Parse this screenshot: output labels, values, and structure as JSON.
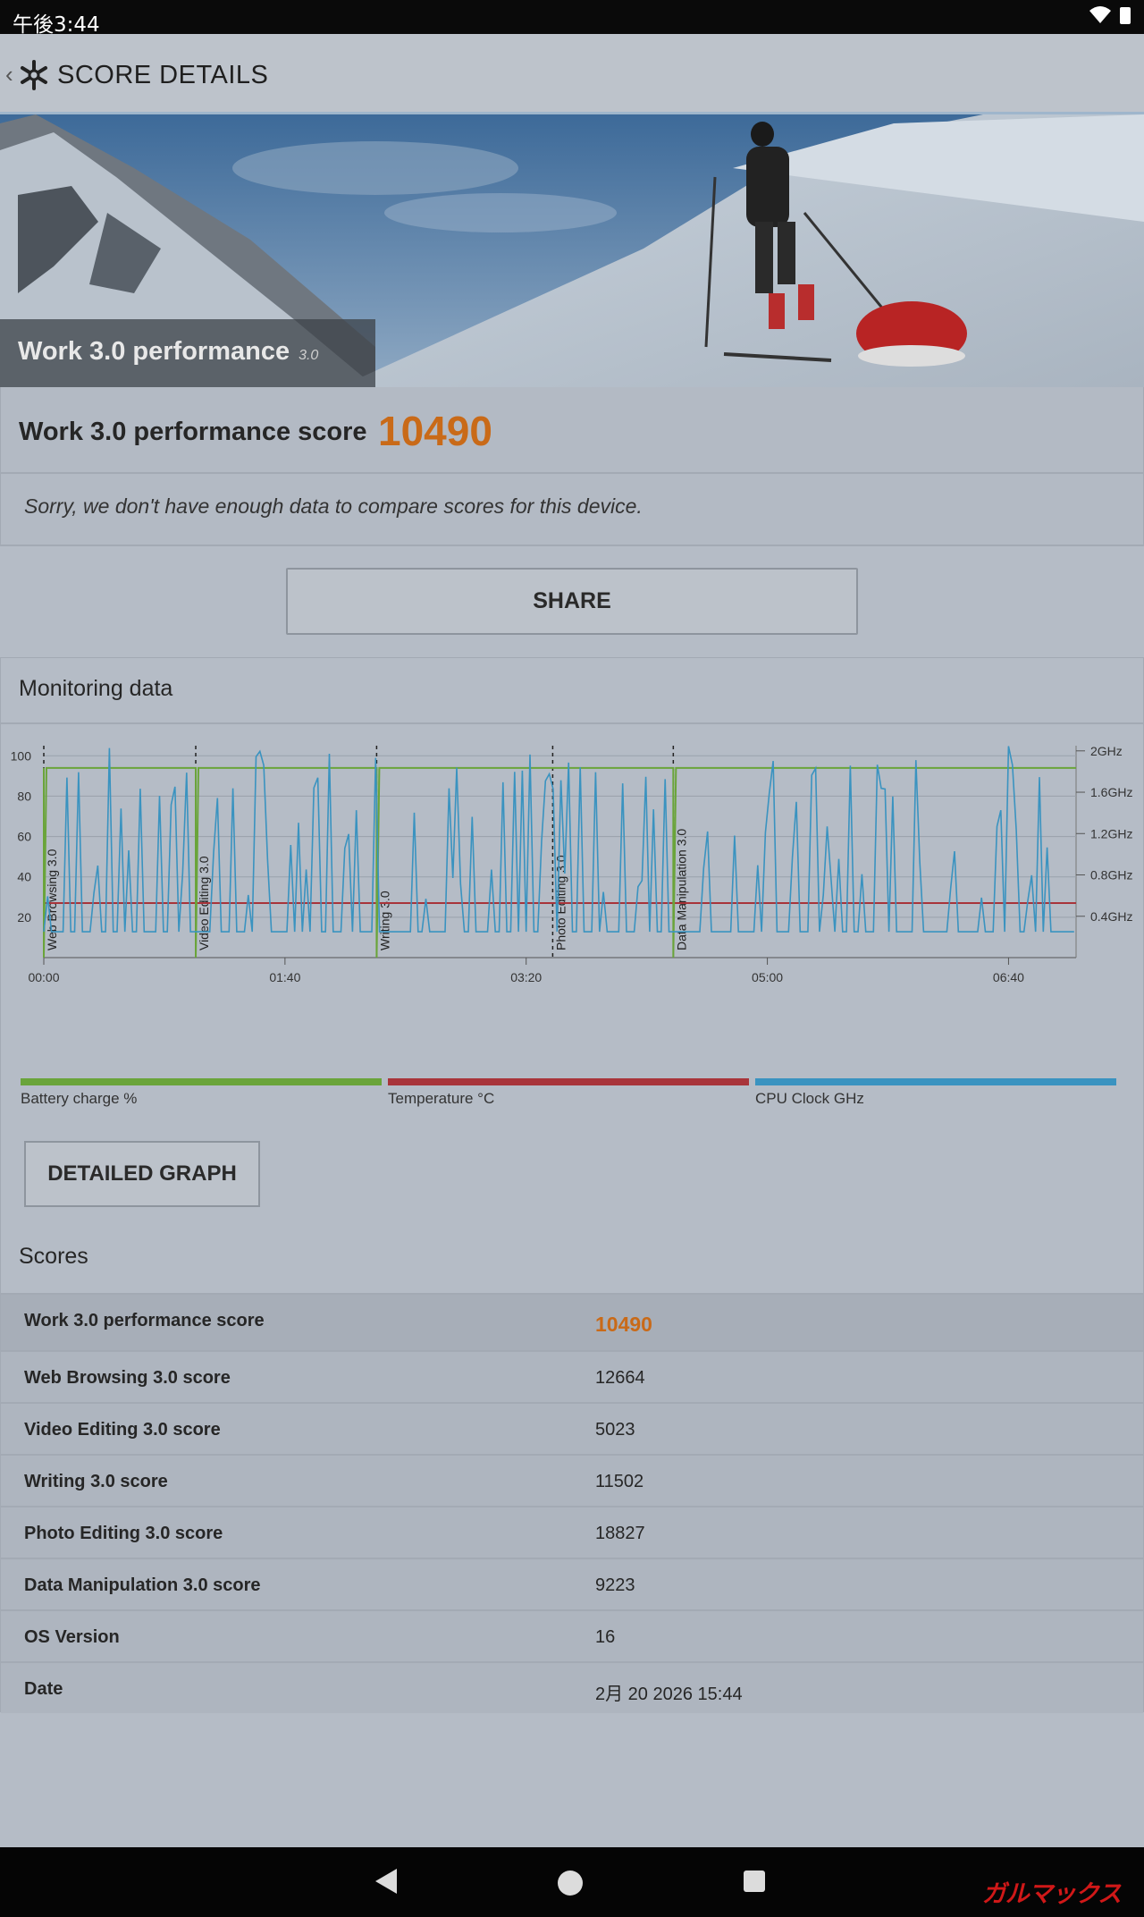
{
  "status_bar": {
    "time": "午後3:44"
  },
  "header": {
    "title": "SCORE DETAILS"
  },
  "hero": {
    "title": "Work 3.0 performance",
    "version": "3.0"
  },
  "score": {
    "label": "Work 3.0 performance score",
    "value": "10490",
    "compare_note": "Sorry, we don't have enough data to compare scores for this device."
  },
  "share_button": "SHARE",
  "monitoring": {
    "title": "Monitoring data",
    "detailed_graph_button": "DETAILED GRAPH",
    "legend": [
      {
        "label": "Battery charge %",
        "color": "#6aa43a"
      },
      {
        "label": "Temperature °C",
        "color": "#a8343a"
      },
      {
        "label": "CPU Clock GHz",
        "color": "#3a93c0"
      }
    ]
  },
  "chart_data": {
    "type": "line",
    "x_ticks": [
      "00:00",
      "01:40",
      "03:20",
      "05:00",
      "06:40"
    ],
    "y_left_ticks": [
      "100",
      "80",
      "60",
      "40",
      "20"
    ],
    "y_right_ticks": [
      "2GHz",
      "1.6GHz",
      "1.2GHz",
      "0.8GHz",
      "0.4GHz"
    ],
    "ylim_left": [
      0,
      105
    ],
    "y_right_range": [
      0,
      2.05
    ],
    "x_range_seconds": [
      0,
      428
    ],
    "segments": [
      {
        "label": "Web Browsing 3.0",
        "t": 0
      },
      {
        "label": "Video Editing 3.0",
        "t": 63
      },
      {
        "label": "Writing 3.0",
        "t": 138
      },
      {
        "label": "Photo Editing 3.0",
        "t": 211
      },
      {
        "label": "Data Manipulation 3.0",
        "t": 261
      }
    ],
    "series": [
      {
        "name": "Battery charge %",
        "color": "#6aa43a",
        "approx_level": 94
      },
      {
        "name": "Temperature °C",
        "color": "#a8343a",
        "approx_level": 27
      },
      {
        "name": "CPU Clock GHz",
        "color": "#3a93c0",
        "min": 0.25,
        "max": 2.05
      }
    ]
  },
  "scores": {
    "heading": "Scores",
    "rows": [
      {
        "label": "Work 3.0 performance score",
        "value": "10490"
      },
      {
        "label": "Web Browsing 3.0 score",
        "value": "12664"
      },
      {
        "label": "Video Editing 3.0 score",
        "value": "5023"
      },
      {
        "label": "Writing 3.0 score",
        "value": "11502"
      },
      {
        "label": "Photo Editing 3.0 score",
        "value": "18827"
      },
      {
        "label": "Data Manipulation 3.0 score",
        "value": "9223"
      },
      {
        "label": "OS Version",
        "value": "16"
      },
      {
        "label": "Date",
        "value": "2月 20 2026 15:44"
      }
    ]
  },
  "watermark": "ガルマックス"
}
